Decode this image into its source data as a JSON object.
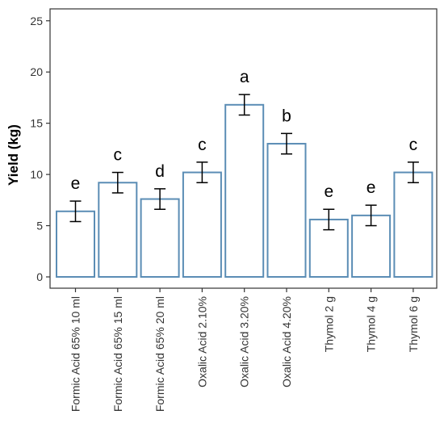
{
  "chart_data": {
    "type": "bar",
    "title": "",
    "xlabel": "",
    "ylabel": "Yield (kg)",
    "ylim": [
      0,
      26.2
    ],
    "yticks": [
      0,
      5,
      10,
      15,
      20,
      25
    ],
    "categories": [
      "Formic Acid 65% 10 ml",
      "Formic Acid 65% 15 ml",
      "Formic Acid 65% 20 ml",
      "Oxalic Acid 2.10%",
      "Oxalic Acid 3.20%",
      "Oxalic Acid 4.20%",
      "Thymol 2 g",
      "Thymol 4 g",
      "Thymol 6 g"
    ],
    "values": [
      6.4,
      9.2,
      7.6,
      10.2,
      16.8,
      13.0,
      5.6,
      6.0,
      10.2
    ],
    "errors": [
      1.0,
      1.0,
      1.0,
      1.0,
      1.0,
      1.0,
      1.0,
      1.0,
      1.0
    ],
    "significance_letters": [
      "e",
      "c",
      "d",
      "c",
      "a",
      "b",
      "e",
      "e",
      "c"
    ],
    "grid": false,
    "legend": "none",
    "colors": {
      "bar_edge": "#5b8db5",
      "bar_fill": "#ffffff",
      "axis": "#333333",
      "error_bar": "#000000"
    }
  }
}
